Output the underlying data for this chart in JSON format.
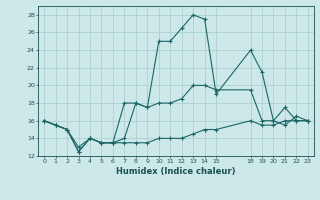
{
  "xlabel": "Humidex (Indice chaleur)",
  "bg_color": "#cde8e8",
  "grid_color": "#a8cccc",
  "line_color": "#1a6666",
  "line_spike_x": [
    0,
    1,
    2,
    3,
    4,
    5,
    6,
    7,
    8,
    9,
    10,
    11,
    12,
    13,
    14,
    15,
    18,
    19,
    20,
    21,
    22,
    23
  ],
  "line_spike_y": [
    16,
    15.5,
    15,
    12.5,
    14,
    13.5,
    13.5,
    14,
    18,
    17.5,
    25,
    25,
    26.5,
    28,
    27.5,
    19,
    24,
    21.5,
    16,
    17.5,
    16,
    16
  ],
  "line_mid_x": [
    0,
    1,
    2,
    3,
    4,
    5,
    6,
    7,
    8,
    9,
    10,
    11,
    12,
    13,
    14,
    15,
    18,
    19,
    20,
    21,
    22,
    23
  ],
  "line_mid_y": [
    16,
    15.5,
    15,
    13,
    14,
    13.5,
    13.5,
    18,
    18,
    17.5,
    18,
    18,
    18.5,
    20,
    20,
    19.5,
    19.5,
    16,
    16,
    15.5,
    16.5,
    16
  ],
  "line_low_x": [
    0,
    1,
    2,
    3,
    4,
    5,
    6,
    7,
    8,
    9,
    10,
    11,
    12,
    13,
    14,
    15,
    18,
    19,
    20,
    21,
    22,
    23
  ],
  "line_low_y": [
    16,
    15.5,
    15,
    12.5,
    14,
    13.5,
    13.5,
    13.5,
    13.5,
    13.5,
    14,
    14,
    14,
    14.5,
    15,
    15,
    16,
    15.5,
    15.5,
    16,
    16,
    16
  ],
  "ylim": [
    12,
    29
  ],
  "xlim": [
    -0.5,
    23.5
  ],
  "yticks": [
    12,
    14,
    16,
    18,
    20,
    22,
    24,
    26,
    28
  ],
  "xtick_positions": [
    0,
    1,
    2,
    3,
    4,
    5,
    6,
    7,
    8,
    9,
    10,
    11,
    12,
    13,
    14,
    15,
    18,
    19,
    20,
    21,
    22,
    23
  ],
  "xtick_labels": [
    "0",
    "1",
    "2",
    "3",
    "4",
    "5",
    "6",
    "7",
    "8",
    "9",
    "10",
    "11",
    "12",
    "13",
    "14",
    "15",
    "18",
    "19",
    "20",
    "21",
    "22",
    "23"
  ]
}
